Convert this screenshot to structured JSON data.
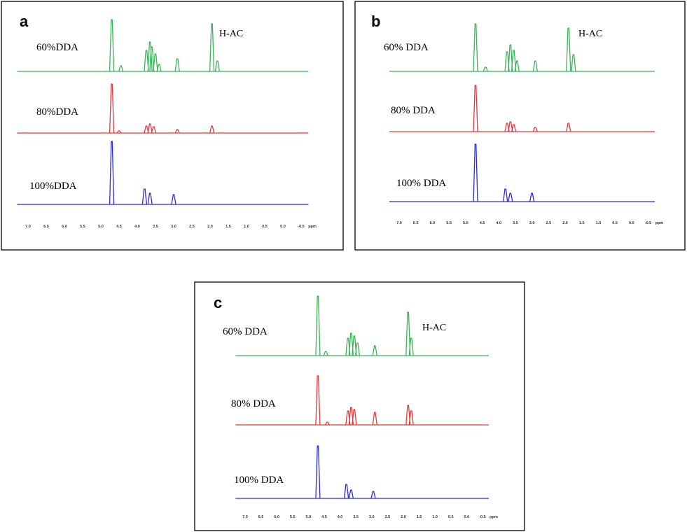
{
  "chart_data": [
    {
      "type": "line",
      "panel": "a",
      "annotation": "H-AC",
      "xlabel": "ppm",
      "xlim": [
        7.3,
        -0.7
      ],
      "xticks": [
        {
          "value": 7,
          "label": "7.0"
        },
        6.5,
        {
          "value": 6,
          "label": "6.0"
        },
        5.5,
        {
          "value": 5,
          "label": "5.0"
        },
        4.5,
        {
          "value": 4,
          "label": "4.0"
        },
        3.5,
        {
          "value": 3,
          "label": "3.0"
        },
        2.5,
        {
          "value": 2,
          "label": "2.0"
        },
        1.5,
        {
          "value": 1,
          "label": "1.0"
        },
        0.5,
        {
          "value": 0,
          "label": "0.0"
        },
        -0.5
      ],
      "series": [
        {
          "name": "60%DDA",
          "color": "#3cb35a",
          "x": [
            4.7,
            4.45,
            3.75,
            3.65,
            3.6,
            3.5,
            3.4,
            2.9,
            1.95,
            1.8
          ],
          "values": [
            74,
            8,
            30,
            42,
            35,
            25,
            10,
            18,
            68,
            15
          ]
        },
        {
          "name": "80%DDA",
          "color": "#e0393e",
          "x": [
            4.7,
            4.5,
            3.75,
            3.65,
            3.55,
            2.9,
            1.95
          ],
          "values": [
            70,
            3,
            10,
            13,
            9,
            5,
            10
          ]
        },
        {
          "name": "100%DDA",
          "color": "#2a2ad8",
          "x": [
            4.7,
            3.8,
            3.65,
            3.0
          ],
          "values": [
            90,
            22,
            16,
            14
          ]
        }
      ]
    },
    {
      "type": "line",
      "panel": "b",
      "annotation": "H-AC",
      "xlabel": "ppm",
      "xlim": [
        7.3,
        -0.7
      ],
      "xticks": [
        {
          "value": 7,
          "label": "7.0"
        },
        6.5,
        {
          "value": 6,
          "label": "6.0"
        },
        5.5,
        {
          "value": 5,
          "label": "5.0"
        },
        4.5,
        {
          "value": 4,
          "label": "4.0"
        },
        3.5,
        {
          "value": 3,
          "label": "3.0"
        },
        2.5,
        {
          "value": 2,
          "label": "2.0"
        },
        1.5,
        {
          "value": 1,
          "label": "1.0"
        },
        0.5,
        {
          "value": 0,
          "label": "0.0"
        },
        -0.5
      ],
      "series": [
        {
          "name": "60% DDA",
          "color": "#3cb35a",
          "x": [
            4.7,
            4.4,
            3.75,
            3.65,
            3.55,
            3.45,
            2.9,
            1.9,
            1.75
          ],
          "values": [
            68,
            6,
            28,
            38,
            30,
            15,
            15,
            62,
            24
          ]
        },
        {
          "name": "80% DDA",
          "color": "#e0393e",
          "x": [
            4.7,
            3.75,
            3.65,
            3.55,
            2.9,
            1.9
          ],
          "values": [
            66,
            12,
            14,
            10,
            6,
            12
          ]
        },
        {
          "name": "100% DDA",
          "color": "#2a2ad8",
          "x": [
            4.7,
            3.8,
            3.65,
            3.0
          ],
          "values": [
            82,
            18,
            12,
            12
          ]
        }
      ]
    },
    {
      "type": "line",
      "panel": "c",
      "annotation": "H-AC",
      "xlabel": "ppm",
      "xlim": [
        7.3,
        -0.7
      ],
      "xticks": [
        {
          "value": 7,
          "label": "7.0"
        },
        6.5,
        {
          "value": 6,
          "label": "6.0"
        },
        5.5,
        {
          "value": 5,
          "label": "5.0"
        },
        4.5,
        {
          "value": 4,
          "label": "4.0"
        },
        3.5,
        {
          "value": 3,
          "label": "3.0"
        },
        2.5,
        {
          "value": 2,
          "label": "2.0"
        },
        1.5,
        {
          "value": 1,
          "label": "1.0"
        },
        0.5,
        {
          "value": 0,
          "label": "0.0"
        },
        -0.5
      ],
      "series": [
        {
          "name": "60% DDA",
          "color": "#3cb35a",
          "x": [
            4.7,
            4.45,
            3.75,
            3.65,
            3.55,
            3.45,
            2.9,
            1.85,
            1.75
          ],
          "values": [
            85,
            6,
            25,
            32,
            28,
            18,
            14,
            62,
            25
          ]
        },
        {
          "name": "80% DDA",
          "color": "#e0393e",
          "x": [
            4.7,
            4.4,
            3.75,
            3.65,
            3.55,
            2.9,
            1.85,
            1.75
          ],
          "values": [
            70,
            4,
            20,
            25,
            22,
            18,
            28,
            20
          ]
        },
        {
          "name": "100% DDA",
          "color": "#2a2ad8",
          "x": [
            4.7,
            3.8,
            3.65,
            2.95
          ],
          "values": [
            75,
            20,
            12,
            10
          ]
        }
      ]
    }
  ]
}
